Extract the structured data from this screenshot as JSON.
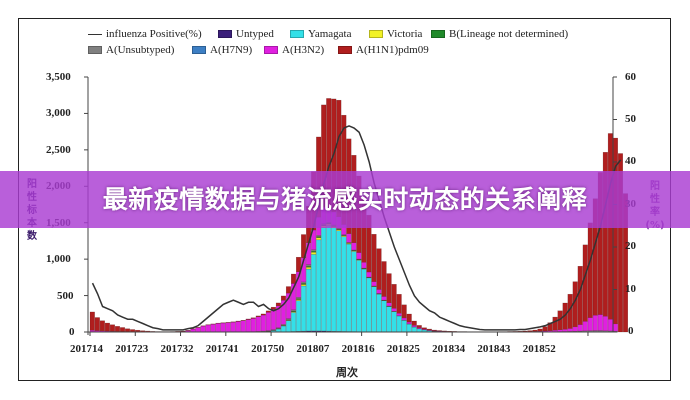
{
  "banner": {
    "title": "最新疫情数据与猪流感实时动态的关系阐释",
    "background": "#b04ad6"
  },
  "legend": [
    {
      "label": "influenza Positive(%)",
      "type": "line",
      "color": "#333333"
    },
    {
      "label": "Untyped",
      "type": "bar",
      "color": "#3b1f7a"
    },
    {
      "label": "Yamagata",
      "type": "bar",
      "color": "#33e0e8"
    },
    {
      "label": "Victoria",
      "type": "bar",
      "color": "#f2f226"
    },
    {
      "label": "B(Lineage not determined)",
      "type": "bar",
      "color": "#1f8a2a"
    },
    {
      "label": "A(Unsubtyped)",
      "type": "bar",
      "color": "#808080"
    },
    {
      "label": "A(H7N9)",
      "type": "bar",
      "color": "#3d7fc4"
    },
    {
      "label": "A(H3N2)",
      "type": "bar",
      "color": "#e020e0"
    },
    {
      "label": "A(H1N1)pdm09",
      "type": "bar",
      "color": "#b01e1e"
    }
  ],
  "axes": {
    "left_label": "阳性标本数",
    "right_label": "阳性率(%)",
    "x_label": "周次",
    "left_ticks": [
      "3,500",
      "3,000",
      "2,500",
      "2,000",
      "1,500",
      "1,000",
      "500",
      "0"
    ],
    "right_ticks": [
      "60",
      "50",
      "40",
      "30",
      "20",
      "10",
      "0"
    ],
    "x_ticks": [
      "201714",
      "201723",
      "201732",
      "201741",
      "201750",
      "201807",
      "201816",
      "201825",
      "201834",
      "201843",
      "201852"
    ]
  },
  "chart_data": {
    "type": "bar",
    "stacked": true,
    "title": "",
    "xlabel": "周次",
    "ylabel": "阳性标本数",
    "y2label": "阳性率(%)",
    "ylim": [
      0,
      3500
    ],
    "y2lim": [
      0,
      60
    ],
    "legend_position": "top",
    "grid": false,
    "categories_note": "weekly bars from 2017 week 14 through ~2019 week 3",
    "x_tick_labels": [
      "201714",
      "201723",
      "201732",
      "201741",
      "201750",
      "201807",
      "201816",
      "201825",
      "201834",
      "201843",
      "201852"
    ],
    "series": [
      {
        "name": "A(H1N1)pdm09",
        "color": "#b01e1e",
        "values": [
          250,
          180,
          140,
          110,
          90,
          70,
          55,
          40,
          30,
          22,
          15,
          10,
          6,
          4,
          3,
          2,
          2,
          2,
          2,
          2,
          2,
          2,
          2,
          2,
          3,
          3,
          3,
          4,
          5,
          6,
          6,
          8,
          10,
          12,
          15,
          20,
          28,
          40,
          60,
          90,
          130,
          200,
          320,
          500,
          800,
          1100,
          1400,
          1500,
          1550,
          1600,
          1500,
          1300,
          1200,
          1050,
          900,
          780,
          650,
          560,
          480,
          400,
          330,
          260,
          180,
          110,
          60,
          30,
          18,
          12,
          8,
          6,
          5,
          4,
          3,
          3,
          3,
          2,
          2,
          2,
          2,
          2,
          2,
          3,
          3,
          4,
          5,
          6,
          8,
          12,
          18,
          30,
          60,
          110,
          180,
          260,
          360,
          470,
          620,
          800,
          1050,
          1300,
          1600,
          1950,
          2250,
          2550,
          2550,
          2450,
          1900
        ]
      },
      {
        "name": "A(H3N2)",
        "color": "#e020e0",
        "values": [
          20,
          15,
          12,
          10,
          8,
          6,
          5,
          4,
          3,
          2,
          2,
          2,
          2,
          2,
          2,
          3,
          4,
          6,
          10,
          20,
          40,
          60,
          80,
          95,
          105,
          115,
          120,
          125,
          130,
          140,
          150,
          165,
          180,
          200,
          220,
          250,
          280,
          300,
          330,
          350,
          360,
          350,
          330,
          300,
          270,
          250,
          230,
          200,
          180,
          160,
          140,
          120,
          100,
          90,
          80,
          70,
          60,
          55,
          50,
          45,
          40,
          35,
          30,
          25,
          20,
          15,
          10,
          8,
          6,
          5,
          4,
          3,
          3,
          2,
          2,
          2,
          2,
          2,
          2,
          2,
          2,
          2,
          2,
          3,
          3,
          4,
          5,
          6,
          8,
          10,
          12,
          15,
          20,
          25,
          30,
          40,
          60,
          90,
          130,
          180,
          210,
          220,
          200,
          160,
          100
        ]
      },
      {
        "name": "Yamagata",
        "color": "#33e0e8",
        "values": [
          0,
          0,
          0,
          0,
          0,
          0,
          0,
          0,
          0,
          0,
          0,
          0,
          0,
          0,
          0,
          0,
          0,
          0,
          0,
          0,
          0,
          0,
          0,
          0,
          0,
          0,
          0,
          0,
          0,
          0,
          0,
          0,
          0,
          2,
          5,
          10,
          20,
          40,
          80,
          150,
          260,
          420,
          620,
          850,
          1050,
          1250,
          1420,
          1450,
          1420,
          1380,
          1300,
          1200,
          1100,
          980,
          860,
          740,
          620,
          520,
          430,
          350,
          280,
          220,
          160,
          110,
          70,
          45,
          30,
          20,
          12,
          8,
          5,
          3,
          2,
          1,
          1,
          0,
          0,
          0,
          0,
          0,
          0,
          0,
          0,
          0,
          0,
          0,
          0,
          0,
          0,
          0,
          0,
          0,
          0,
          0,
          0,
          0,
          0,
          0,
          0,
          0,
          0,
          0,
          0,
          0,
          0,
          0
        ]
      },
      {
        "name": "Victoria",
        "color": "#f2f226",
        "values": [
          0,
          0,
          0,
          0,
          0,
          0,
          0,
          0,
          0,
          0,
          0,
          0,
          0,
          0,
          0,
          0,
          0,
          0,
          0,
          0,
          0,
          0,
          0,
          0,
          0,
          0,
          0,
          0,
          0,
          0,
          0,
          0,
          0,
          0,
          0,
          0,
          0,
          2,
          3,
          5,
          10,
          15,
          20,
          25,
          30,
          30,
          25,
          20,
          18,
          15,
          12,
          10,
          8,
          6,
          5,
          4,
          3,
          2,
          2,
          1,
          1,
          0,
          0,
          0,
          0,
          0,
          0,
          0,
          0,
          0,
          0,
          0,
          0,
          0,
          0,
          0,
          0,
          0,
          0,
          0,
          0,
          0,
          0,
          0,
          0,
          0,
          0,
          0,
          0,
          0,
          0,
          0,
          0,
          0,
          0,
          0,
          0,
          0,
          0,
          0,
          0,
          0,
          0,
          0,
          0,
          0
        ]
      },
      {
        "name": "B(Lineage not determined)",
        "color": "#1f8a2a",
        "values": [
          0,
          0,
          0,
          0,
          0,
          0,
          0,
          0,
          0,
          0,
          0,
          0,
          0,
          0,
          0,
          0,
          0,
          0,
          0,
          0,
          0,
          0,
          0,
          0,
          0,
          0,
          0,
          0,
          0,
          0,
          0,
          0,
          0,
          0,
          0,
          1,
          2,
          3,
          5,
          8,
          10,
          12,
          14,
          15,
          15,
          14,
          12,
          10,
          9,
          8,
          7,
          6,
          5,
          4,
          3,
          2,
          2,
          1,
          1,
          1,
          0,
          0,
          0,
          0,
          0,
          0,
          0,
          0,
          0,
          0,
          0,
          0,
          0,
          0,
          0,
          0,
          0,
          0,
          0,
          0,
          0,
          0,
          0,
          0,
          0,
          0,
          0,
          0,
          0,
          0,
          0,
          0,
          0,
          0,
          0,
          0,
          0,
          0,
          0,
          0,
          0,
          0,
          0,
          0,
          0
        ]
      },
      {
        "name": "A(Unsubtyped)",
        "color": "#808080",
        "values": [
          5,
          4,
          3,
          3,
          2,
          2,
          2,
          1,
          1,
          1,
          1,
          1,
          1,
          1,
          1,
          1,
          1,
          1,
          1,
          1,
          2,
          2,
          3,
          3,
          3,
          4,
          4,
          4,
          5,
          5,
          5,
          6,
          6,
          7,
          8,
          9,
          10,
          12,
          14,
          16,
          18,
          20,
          22,
          22,
          20,
          18,
          16,
          14,
          12,
          10,
          9,
          8,
          7,
          6,
          5,
          5,
          4,
          4,
          3,
          3,
          3,
          2,
          2,
          2,
          1,
          1,
          1,
          1,
          1,
          1,
          1,
          1,
          1,
          1,
          1,
          1,
          1,
          1,
          1,
          1,
          1,
          1,
          1,
          1,
          1,
          1,
          1,
          1,
          1,
          2,
          2,
          3,
          4,
          5,
          6,
          7,
          8,
          10,
          12,
          14,
          16,
          16,
          14,
          12,
          10
        ]
      },
      {
        "name": "Untyped",
        "color": "#3b1f7a",
        "values": [
          0,
          0,
          0,
          0,
          0,
          0,
          0,
          0,
          0,
          0,
          0,
          0,
          0,
          0,
          0,
          0,
          0,
          0,
          0,
          0,
          0,
          0,
          0,
          0,
          0,
          0,
          0,
          0,
          0,
          0,
          0,
          0,
          0,
          0,
          0,
          0,
          1,
          2,
          3,
          5,
          8,
          10,
          12,
          14,
          15,
          15,
          14,
          12,
          10,
          9,
          8,
          7,
          6,
          5,
          4,
          3,
          3,
          2,
          2,
          2,
          1,
          1,
          1,
          0,
          0,
          0,
          0,
          0,
          0,
          0,
          0,
          0,
          0,
          0,
          0,
          0,
          0,
          0,
          0,
          0,
          0,
          0,
          0,
          0,
          0,
          0,
          0,
          0,
          0,
          0,
          0,
          0,
          1,
          1,
          2,
          2,
          3,
          3,
          4,
          4,
          4,
          4,
          3,
          3,
          2
        ]
      },
      {
        "name": "A(H7N9)",
        "color": "#3d7fc4",
        "values": [
          0,
          0,
          0,
          0,
          0,
          0,
          0,
          0,
          0,
          0,
          0,
          0,
          0,
          0,
          0,
          0,
          0,
          0,
          0,
          0,
          0,
          0,
          0,
          0,
          0,
          0,
          0,
          0,
          0,
          0,
          0,
          0,
          0,
          0,
          0,
          0,
          0,
          0,
          0,
          0,
          0,
          0,
          0,
          0,
          0,
          0,
          0,
          0,
          0,
          0,
          0,
          0,
          0,
          0,
          0,
          0,
          0,
          0,
          0,
          0,
          0,
          0,
          0,
          0,
          0,
          0,
          0,
          0,
          0,
          0,
          0,
          0,
          0,
          0,
          0,
          0,
          0,
          0,
          0,
          0,
          0,
          0,
          0,
          0,
          0,
          0,
          0,
          0,
          0,
          0,
          0,
          0,
          0,
          0,
          0,
          0,
          0,
          0,
          0,
          0,
          0,
          0,
          0,
          0,
          0
        ]
      }
    ],
    "line_series": {
      "name": "influenza Positive(%)",
      "axis": "right",
      "color": "#333333",
      "values": [
        11.5,
        9,
        6,
        5.5,
        5,
        4,
        3.5,
        3,
        3,
        2.5,
        2,
        1.5,
        1,
        0.8,
        0.5,
        0.5,
        0.5,
        0.5,
        0.5,
        0.8,
        1,
        1.5,
        2.5,
        3.5,
        4.5,
        5.5,
        6.5,
        7,
        7.5,
        7,
        6.5,
        7,
        7,
        6,
        6.5,
        5.5,
        5,
        5.5,
        6.5,
        8,
        10.5,
        13,
        17,
        21,
        25,
        30,
        35,
        39,
        42,
        46,
        48,
        48.5,
        48,
        47,
        44,
        40,
        35,
        31,
        27,
        23.5,
        20,
        17,
        14,
        11,
        8.5,
        7,
        6,
        5,
        4.5,
        3.5,
        3,
        2.5,
        2,
        1.5,
        1.2,
        1,
        0.8,
        0.6,
        0.5,
        0.5,
        0.5,
        0.5,
        0.5,
        0.5,
        0.5,
        0.6,
        0.6,
        0.8,
        1,
        1.2,
        1.5,
        2,
        2.5,
        3,
        4,
        5.5,
        7.5,
        10,
        13.5,
        17,
        21,
        25,
        30,
        35,
        39,
        40.5
      ]
    }
  }
}
